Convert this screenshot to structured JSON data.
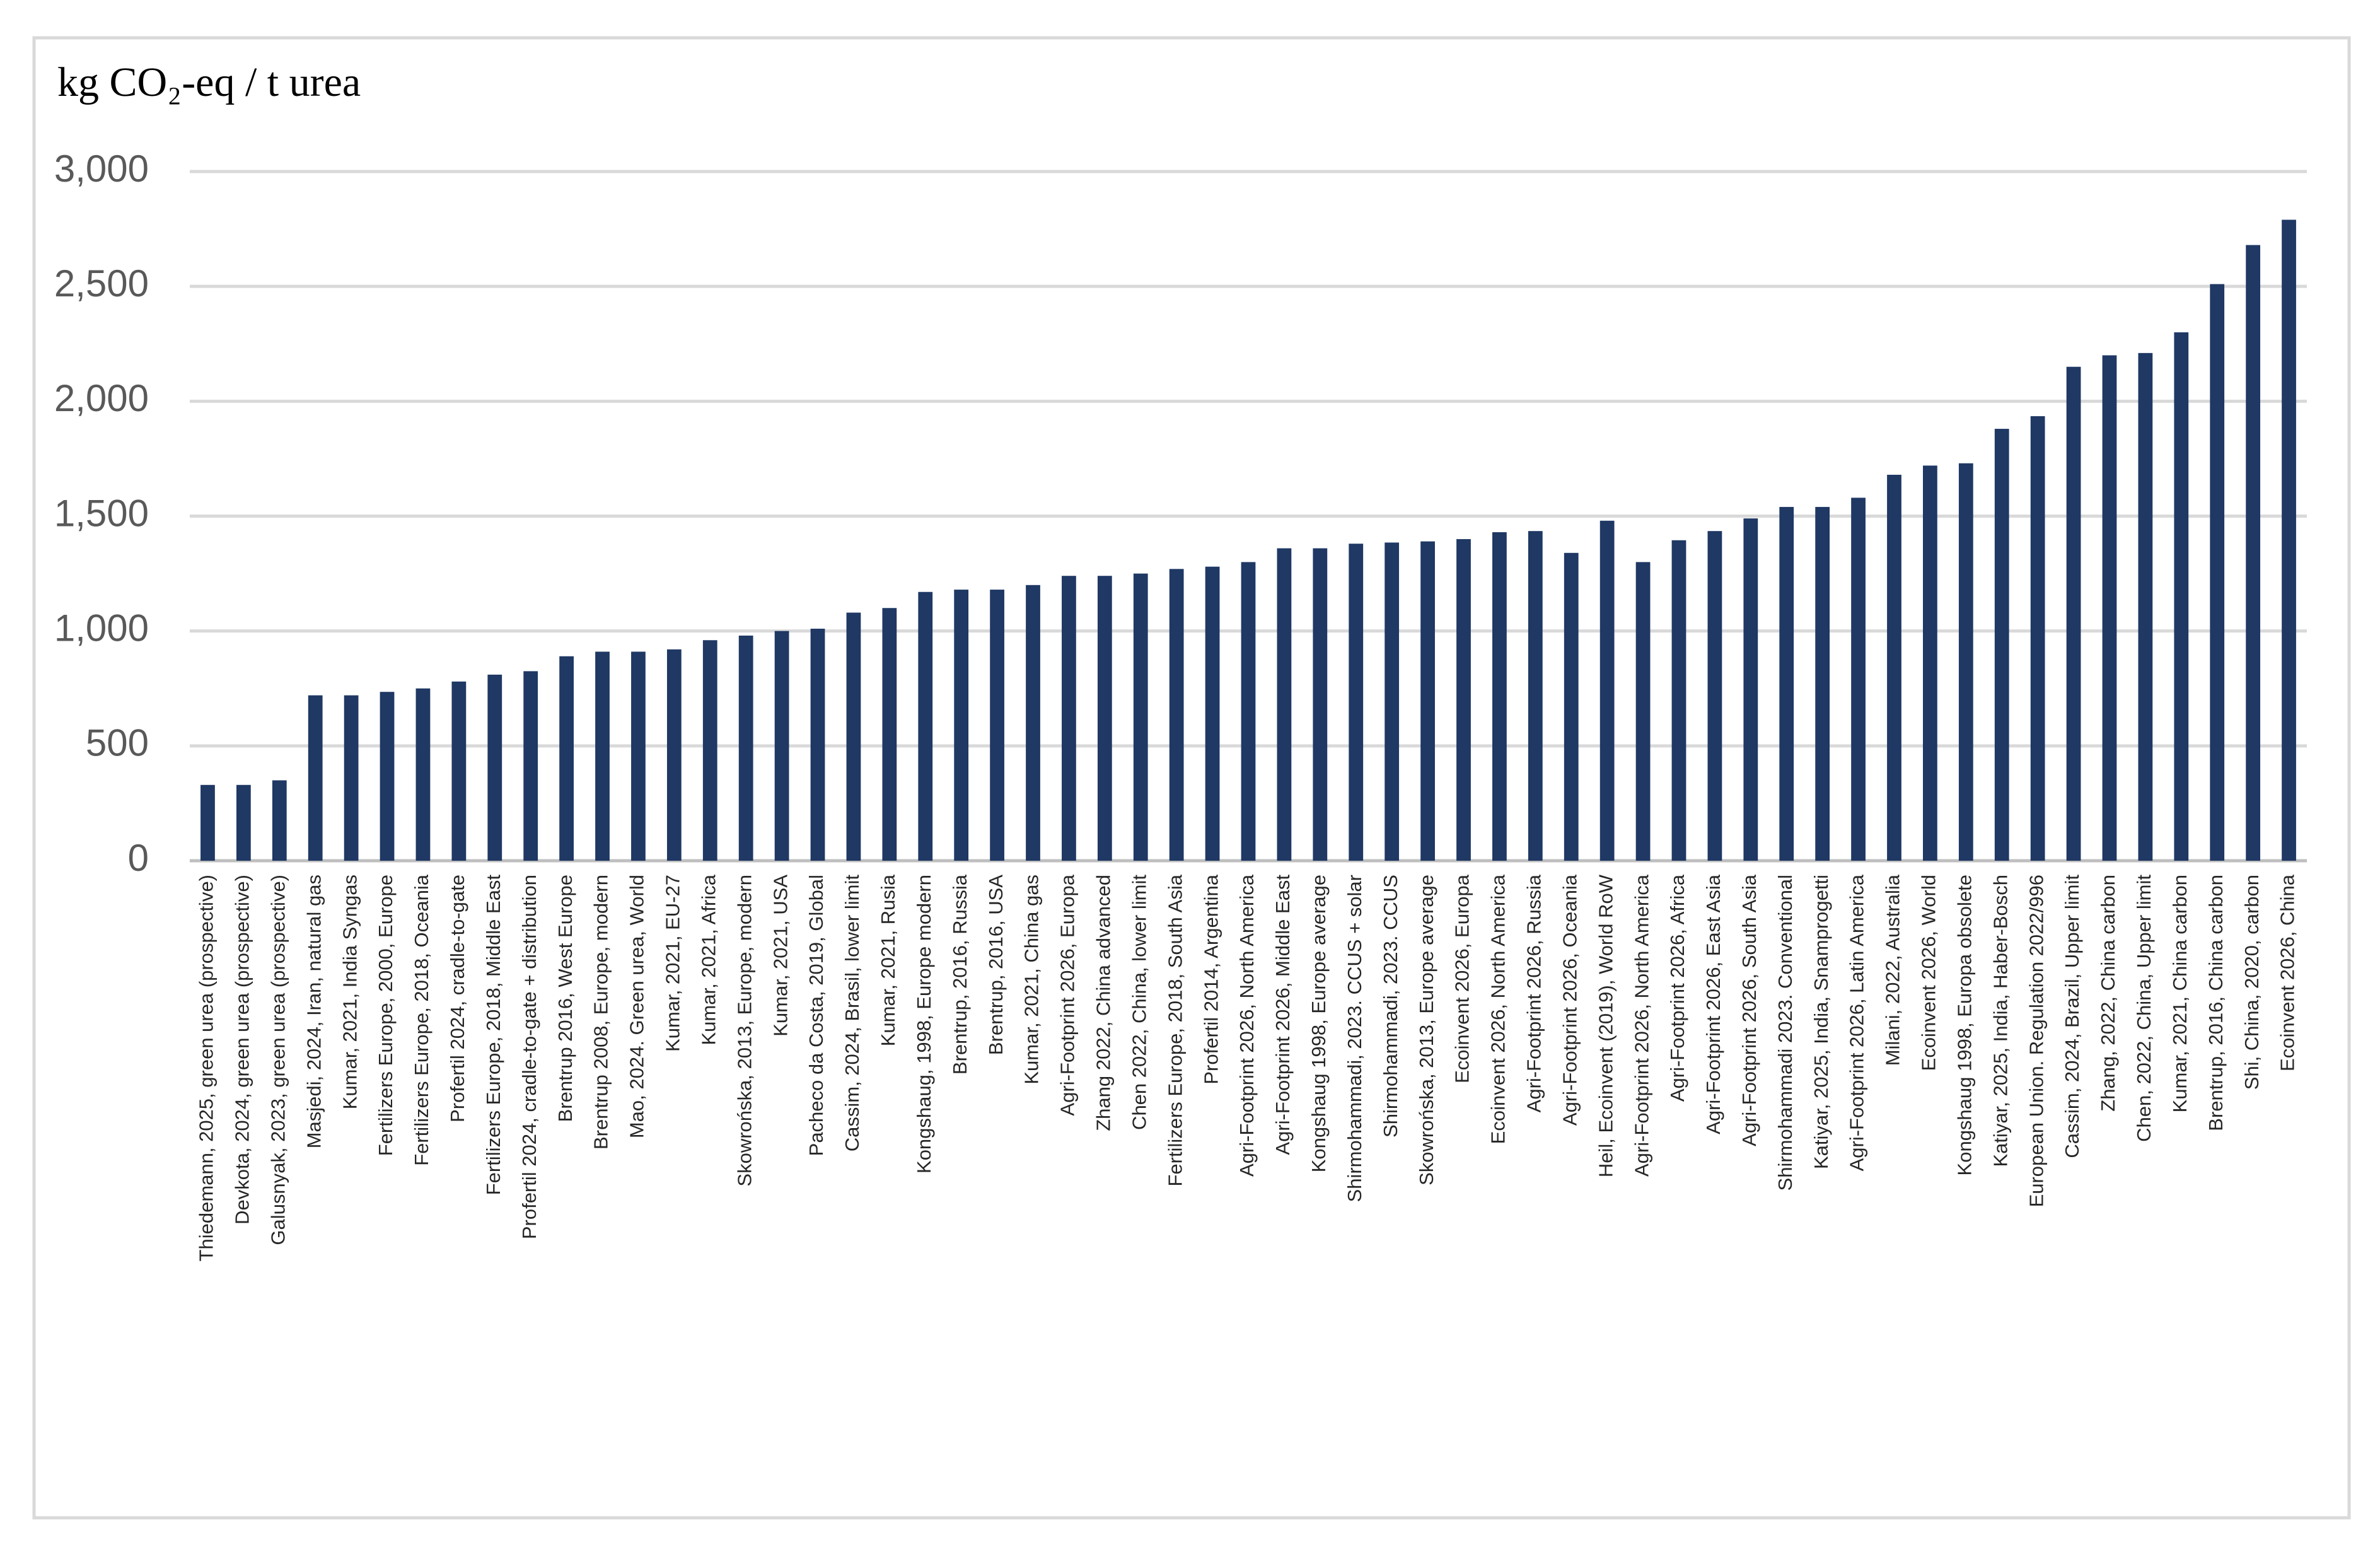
{
  "chart_data": {
    "type": "bar",
    "title": "kg CO₂-eq / t urea",
    "categories": [
      "Thiedemann, 2025, green urea (prospective)",
      "Devkota, 2024, green urea (prospective)",
      "Galusnyak, 2023, green urea (prospective)",
      "Masjedi, 2024, Iran, natural gas",
      "Kumar, 2021, India Syngas",
      "Fertilizers Europe, 2000, Europe",
      "Fertilizers Europe, 2018, Oceania",
      "Profertil 2024, cradle-to-gate",
      "Fertilizers Europe, 2018, Middle East",
      "Profertil 2024, cradle-to-gate + distribution",
      "Brentrup 2016, West Europe",
      "Brentrup 2008, Europe, modern",
      "Mao, 2024. Green urea, World",
      "Kumar, 2021, EU-27",
      "Kumar, 2021, Africa",
      "Skowrońska, 2013, Europe, modern",
      "Kumar, 2021, USA",
      "Pacheco da Costa, 2019, Global",
      "Cassim, 2024, Brasil, lower limit",
      "Kumar, 2021, Rusia",
      "Kongshaug, 1998, Europe modern",
      "Brentrup, 2016, Russia",
      "Brentrup, 2016, USA",
      "Kumar, 2021, China gas",
      "Agri-Footprint 2026, Europa",
      "Zhang 2022, China advanced",
      "Chen 2022, China, lower limit",
      "Fertilizers Europe, 2018, South Asia",
      "Profertil 2014, Argentina",
      "Agri-Footprint 2026, North America",
      "Agri-Footprint 2026, Middle East",
      "Kongshaug 1998, Europe average",
      "Shirmohammadi, 2023. CCUS + solar",
      "Shirmohammadi, 2023. CCUS",
      "Skowrońska, 2013, Europe average",
      "Ecoinvent 2026, Europa",
      "Ecoinvent 2026, North America",
      "Agri-Footprint 2026, Russia",
      "Agri-Footprint 2026, Oceania",
      "Heil, Ecoinvent (2019), World RoW",
      "Agri-Footprint 2026, North America",
      "Agri-Footprint 2026, Africa",
      "Agri-Footprint 2026, East Asia",
      "Agri-Footprint 2026, South Asia",
      "Shirmohammadi 2023. Conventional",
      "Katiyar, 2025, India, Snamprogetti",
      "Agri-Footprint 2026, Latin America",
      "Milani, 2022, Australia",
      "Ecoinvent 2026, World",
      "Kongshaug 1998, Europa obsolete",
      "Katiyar, 2025, India, Haber-Bosch",
      "European Union. Regulation 2022/996",
      "Cassim, 2024, Brazil, Upper limit",
      "Zhang, 2022, China carbon",
      "Chen, 2022, China, Upper limit",
      "Kumar, 2021, China carbon",
      "Brentrup, 2016, China carbon",
      "Shi, China, 2020, carbon",
      "Ecoinvent 2026, China"
    ],
    "values": [
      330,
      330,
      350,
      720,
      720,
      735,
      750,
      780,
      810,
      825,
      890,
      910,
      910,
      920,
      960,
      980,
      1000,
      1010,
      1080,
      1100,
      1170,
      1180,
      1180,
      1200,
      1240,
      1240,
      1250,
      1270,
      1280,
      1300,
      1360,
      1360,
      1380,
      1385,
      1390,
      1400,
      1430,
      1435,
      1340,
      1480,
      1300,
      1395,
      1435,
      1490,
      1540,
      1540,
      1580,
      1680,
      1720,
      1730,
      1880,
      1935,
      2150,
      2200,
      2210,
      2300,
      2510,
      2680,
      2790
    ],
    "color": "#1f3864",
    "ylim": [
      0,
      3000
    ],
    "yticks": [
      0,
      500,
      {
        "value": 1000,
        "label": "1,000"
      },
      {
        "value": 1500,
        "label": "1,500"
      },
      {
        "value": 2000,
        "label": "2,000"
      },
      {
        "value": 2500,
        "label": "2,500"
      },
      {
        "value": 3000,
        "label": "3,000"
      }
    ],
    "grid": true
  }
}
